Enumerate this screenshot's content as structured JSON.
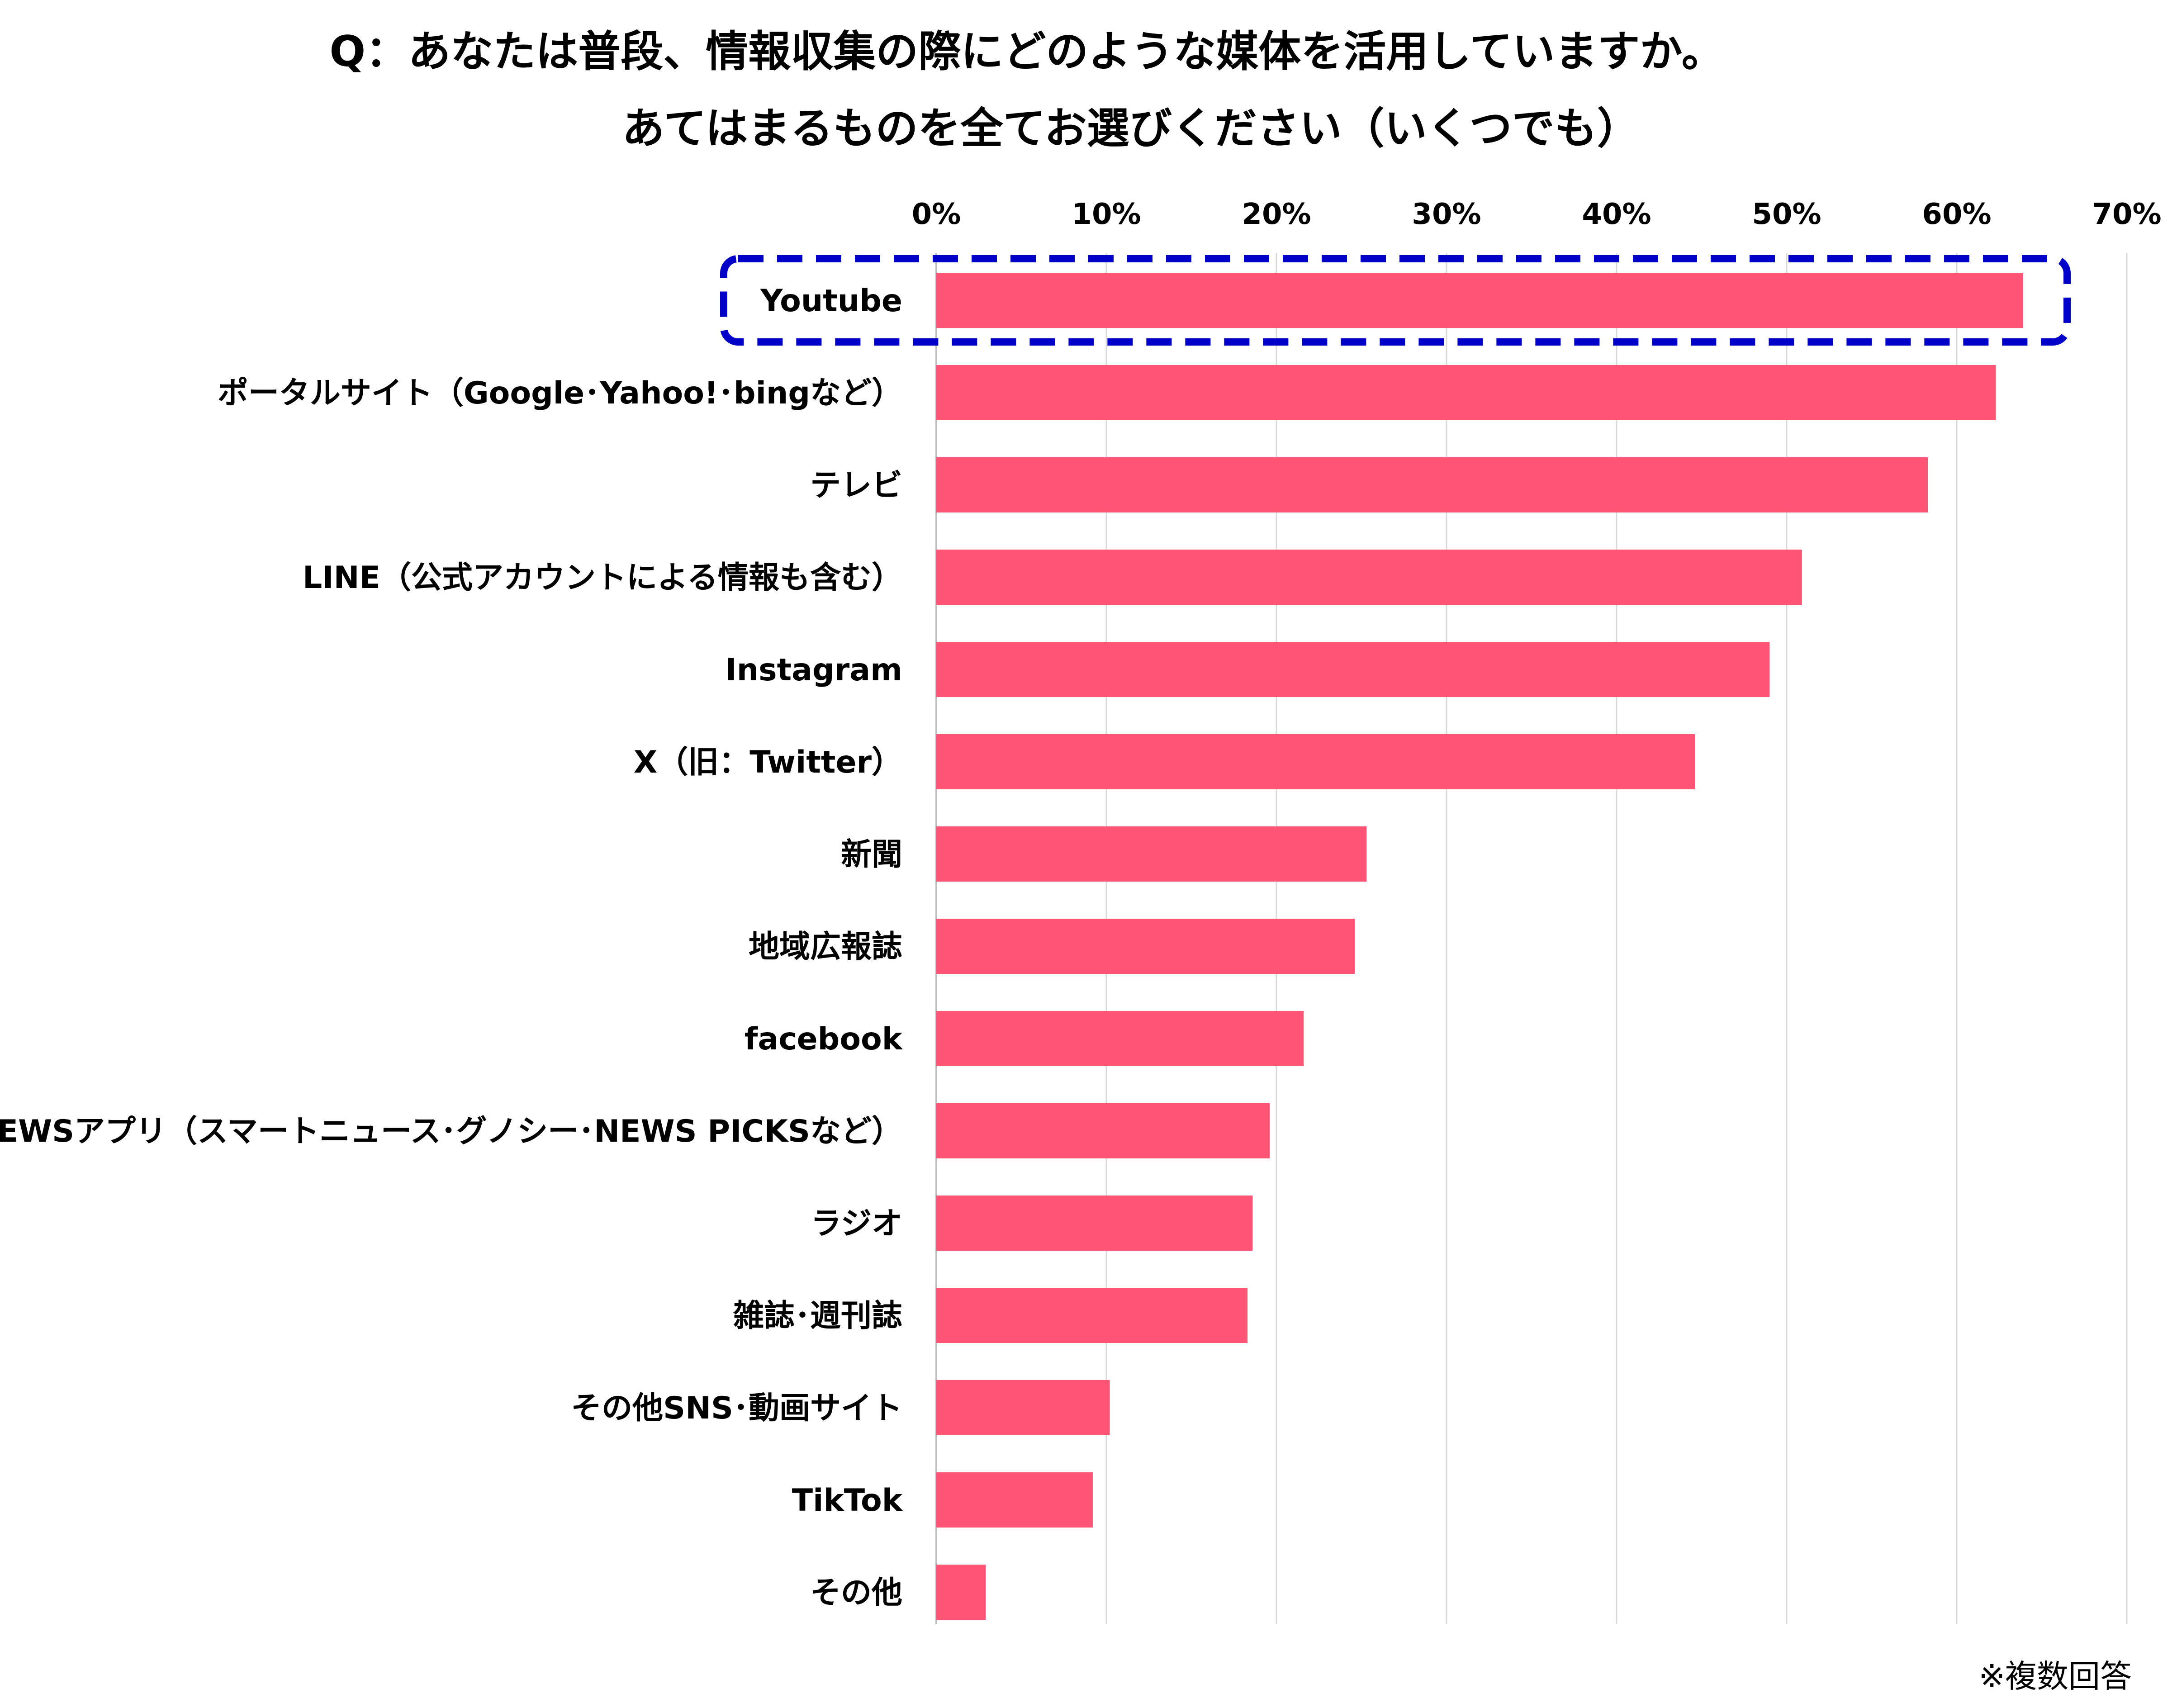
{
  "title_line1": "Q：あなたは普段、情報収集の際にどのような媒体を活用していますか。",
  "title_line2": "あてはまるものを全てお選びください（いくつでも）",
  "note": "※複数回答",
  "colors": {
    "bar": "#ff5574",
    "highlight": "#0000c8",
    "grid": "#d9d9d9"
  },
  "chart_data": {
    "type": "bar",
    "orientation": "horizontal",
    "title": "Q：あなたは普段、情報収集の際にどのような媒体を活用していますか。あてはまるものを全てお選びください（いくつでも）",
    "xlabel": "",
    "ylabel": "",
    "xlim": [
      0,
      70
    ],
    "ticks": [
      "0%",
      "10%",
      "20%",
      "30%",
      "40%",
      "50%",
      "60%",
      "70%"
    ],
    "grid": true,
    "highlighted": "Youtube",
    "categories": [
      "Youtube",
      "ポータルサイト（Google･Yahoo!･bingなど）",
      "テレビ",
      "LINE（公式アカウントによる情報も含む）",
      "Instagram",
      "X（旧：Twitter）",
      "新聞",
      "地域広報誌",
      "facebook",
      "NEWSアプリ（スマートニュース･グノシー･NEWS PICKSなど）",
      "ラジオ",
      "雑誌･週刊誌",
      "その他SNS･動画サイト",
      "TikTok",
      "その他"
    ],
    "values": [
      63.9,
      62.3,
      58.3,
      50.9,
      49.0,
      44.6,
      25.3,
      24.6,
      21.6,
      19.6,
      18.6,
      18.3,
      10.2,
      9.2,
      2.9
    ]
  }
}
